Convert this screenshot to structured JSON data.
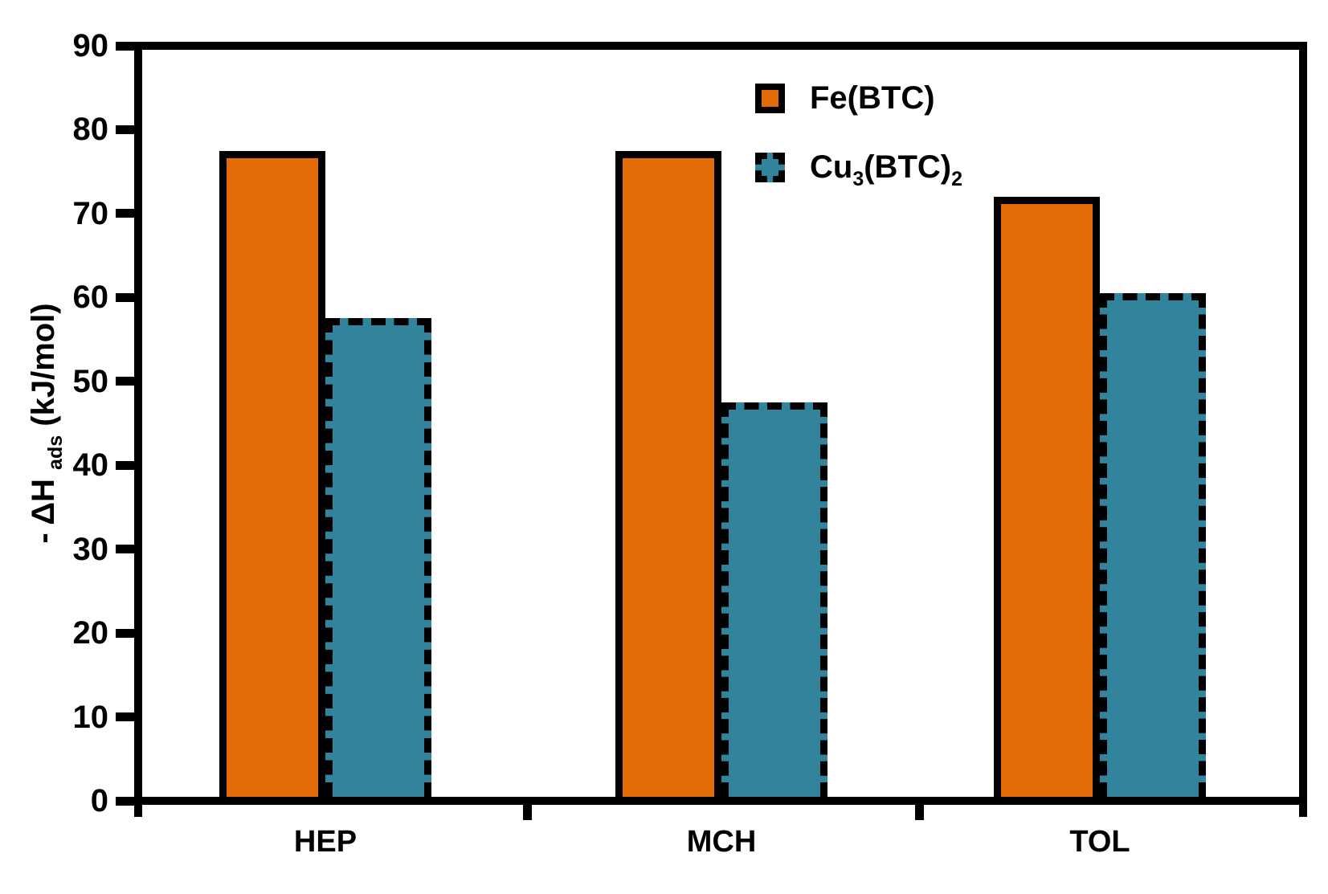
{
  "chart_data": {
    "type": "bar",
    "title": "",
    "categories": [
      "HEP",
      "MCH",
      "TOL"
    ],
    "series": [
      {
        "name": "Fe(BTC)",
        "values": [
          77.5,
          77.5,
          72.0
        ],
        "color": "#E36C09",
        "border_style": "solid",
        "label_parts": [
          {
            "t": "Fe(BTC)",
            "sub": false
          }
        ]
      },
      {
        "name": "Cu3(BTC)2",
        "values": [
          57.5,
          47.5,
          60.5
        ],
        "color": "#31849B",
        "border_style": "dashed",
        "label_parts": [
          {
            "t": "Cu",
            "sub": false
          },
          {
            "t": "3",
            "sub": true
          },
          {
            "t": "(BTC)",
            "sub": false
          },
          {
            "t": "2",
            "sub": true
          }
        ]
      }
    ],
    "ylabel_parts": [
      {
        "t": "- ΔH ",
        "sub": false
      },
      {
        "t": "ads",
        "sub": true
      },
      {
        "t": " (kJ/mol)",
        "sub": false
      }
    ],
    "ylim": [
      0,
      90
    ],
    "yticks": [
      0,
      10,
      20,
      30,
      40,
      50,
      60,
      70,
      80,
      90
    ],
    "xlabel": "",
    "grid": false,
    "legend_position": "top-right-inside",
    "colors": {
      "axis": "#000000",
      "background": "#FFFFFF"
    }
  }
}
